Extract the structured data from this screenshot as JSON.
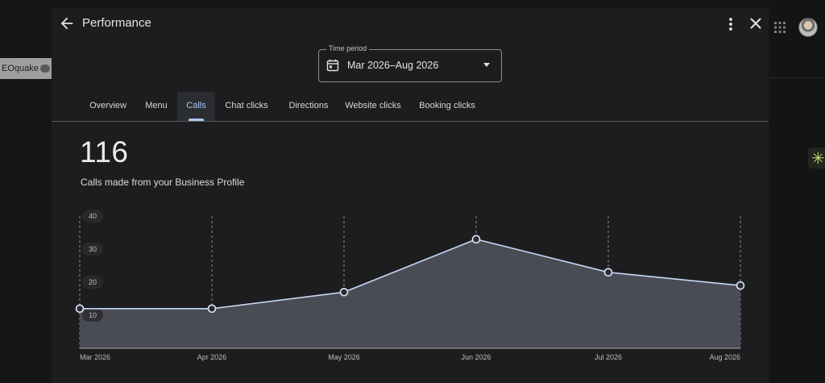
{
  "background": {
    "extension_label": "EOquake"
  },
  "header": {
    "title": "Performance",
    "back_icon": "arrow-left-icon",
    "more_icon": "more-vert-icon",
    "close_icon": "close-icon"
  },
  "time_period": {
    "label": "Time period",
    "value": "Mar 2026–Aug 2026",
    "icon": "calendar-icon"
  },
  "tabs": [
    {
      "label": "Overview",
      "active": false
    },
    {
      "label": "Menu",
      "active": false
    },
    {
      "label": "Calls",
      "active": true
    },
    {
      "label": "Chat clicks",
      "active": false
    },
    {
      "label": "Directions",
      "active": false
    },
    {
      "label": "Website clicks",
      "active": false
    },
    {
      "label": "Booking clicks",
      "active": false
    }
  ],
  "metric": {
    "value": "116",
    "description": "Calls made from your Business Profile"
  },
  "colors": {
    "accent": "#a8c7fa",
    "area_fill": "#4a4c55",
    "line": "#c4d7f5"
  },
  "chart_data": {
    "type": "area",
    "title": "",
    "xlabel": "",
    "ylabel": "",
    "categories": [
      "Mar 2026",
      "Apr 2026",
      "May 2026",
      "Jun 2026",
      "Jul 2026",
      "Aug 2026"
    ],
    "values": [
      12,
      12,
      17,
      33,
      23,
      19
    ],
    "ylim": [
      0,
      40
    ],
    "yticks": [
      "40",
      "30",
      "20",
      "10"
    ],
    "grid": "vertical dashed",
    "legend": "none"
  }
}
